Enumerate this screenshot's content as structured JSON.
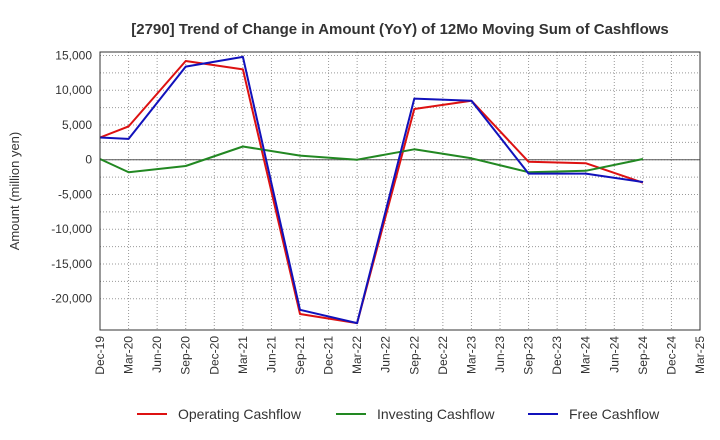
{
  "chart_data": {
    "type": "line",
    "title": "[2790]  Trend of Change in Amount (YoY) of 12Mo Moving Sum of Cashflows",
    "xlabel": "",
    "ylabel": "Amount (million yen)",
    "ylim": [
      -24500,
      15500
    ],
    "yticks": [
      15000,
      10000,
      5000,
      0,
      -5000,
      -10000,
      -15000,
      -20000
    ],
    "ytick_labels": [
      "15,000",
      "10,000",
      "5,000",
      "0",
      "-5,000",
      "-10,000",
      "-15,000",
      "-20,000"
    ],
    "categories": [
      "Dec-19",
      "Mar-20",
      "Jun-20",
      "Sep-20",
      "Dec-20",
      "Mar-21",
      "Jun-21",
      "Sep-21",
      "Dec-21",
      "Mar-22",
      "Jun-22",
      "Sep-22",
      "Dec-22",
      "Mar-23",
      "Jun-23",
      "Sep-23",
      "Dec-23",
      "Mar-24",
      "Jun-24",
      "Sep-24",
      "Dec-24",
      "Mar-25"
    ],
    "series": [
      {
        "name": "Operating Cashflow",
        "color": "#dd1111",
        "values": [
          3200,
          4800,
          null,
          14200,
          null,
          13000,
          null,
          -22200,
          null,
          -23500,
          null,
          7300,
          null,
          8500,
          null,
          -300,
          null,
          -500,
          null,
          -3300,
          null,
          null
        ]
      },
      {
        "name": "Investing Cashflow",
        "color": "#228822",
        "values": [
          100,
          -1800,
          null,
          -900,
          null,
          1900,
          null,
          600,
          null,
          0,
          null,
          1500,
          null,
          200,
          null,
          -1800,
          null,
          -1600,
          null,
          100,
          null,
          null
        ]
      },
      {
        "name": "Free Cashflow",
        "color": "#1111bb",
        "values": [
          3200,
          3000,
          null,
          13400,
          null,
          14800,
          null,
          -21600,
          null,
          -23500,
          null,
          8800,
          null,
          8500,
          null,
          -2000,
          null,
          -2000,
          null,
          -3200,
          null,
          null
        ]
      }
    ],
    "grid": true,
    "legend_position": "bottom"
  }
}
